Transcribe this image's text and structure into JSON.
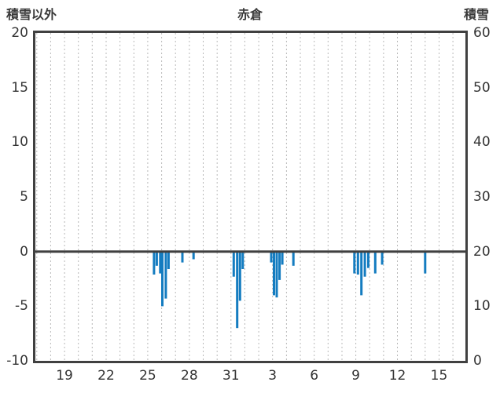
{
  "chart_data": {
    "type": "bar",
    "title": "赤倉",
    "left_axis": {
      "label": "積雪以外",
      "min": -10,
      "max": 20,
      "tick_step": 5,
      "ticks": [
        "20",
        "15",
        "10",
        "5",
        "0",
        "-5",
        "-10"
      ]
    },
    "right_axis": {
      "label": "積雪",
      "min": 0,
      "max": 60,
      "tick_step": 10,
      "ticks": [
        "60",
        "50",
        "40",
        "30",
        "20",
        "10",
        "0"
      ]
    },
    "x_axis": {
      "domain_min": 16.9,
      "domain_max": 47.9,
      "tick_positions": [
        19,
        22,
        25,
        28,
        31,
        34,
        37,
        40,
        43,
        46
      ],
      "tick_labels": [
        "19",
        "22",
        "25",
        "28",
        "31",
        "3",
        "6",
        "9",
        "12",
        "15"
      ],
      "grid_interval": 1,
      "note": "x is continuous day-of-month; values above 31 continue into the next month (34 = 3rd)"
    },
    "grid": "vertical-dashed",
    "zero_line_value": 0,
    "bar_color": "#147cc0",
    "grid_color": "#b8b8b8",
    "frame_color": "#404040",
    "bars": [
      {
        "x": 25.45,
        "value": -2.1
      },
      {
        "x": 25.65,
        "value": -1.3
      },
      {
        "x": 25.9,
        "value": -2.0
      },
      {
        "x": 26.05,
        "value": -5.0
      },
      {
        "x": 26.3,
        "value": -4.3
      },
      {
        "x": 26.5,
        "value": -1.6
      },
      {
        "x": 27.5,
        "value": -1.0
      },
      {
        "x": 28.3,
        "value": -0.7
      },
      {
        "x": 31.2,
        "value": -2.3
      },
      {
        "x": 31.45,
        "value": -7.0
      },
      {
        "x": 31.65,
        "value": -4.5
      },
      {
        "x": 31.85,
        "value": -1.6
      },
      {
        "x": 33.9,
        "value": -1.0
      },
      {
        "x": 34.1,
        "value": -4.0
      },
      {
        "x": 34.3,
        "value": -4.2
      },
      {
        "x": 34.5,
        "value": -2.6
      },
      {
        "x": 34.7,
        "value": -1.2
      },
      {
        "x": 35.5,
        "value": -1.3
      },
      {
        "x": 39.9,
        "value": -2.0
      },
      {
        "x": 40.15,
        "value": -2.1
      },
      {
        "x": 40.4,
        "value": -4.0
      },
      {
        "x": 40.65,
        "value": -2.3
      },
      {
        "x": 40.9,
        "value": -1.5
      },
      {
        "x": 41.4,
        "value": -2.0
      },
      {
        "x": 41.9,
        "value": -1.2
      },
      {
        "x": 45.0,
        "value": -2.0
      }
    ]
  }
}
